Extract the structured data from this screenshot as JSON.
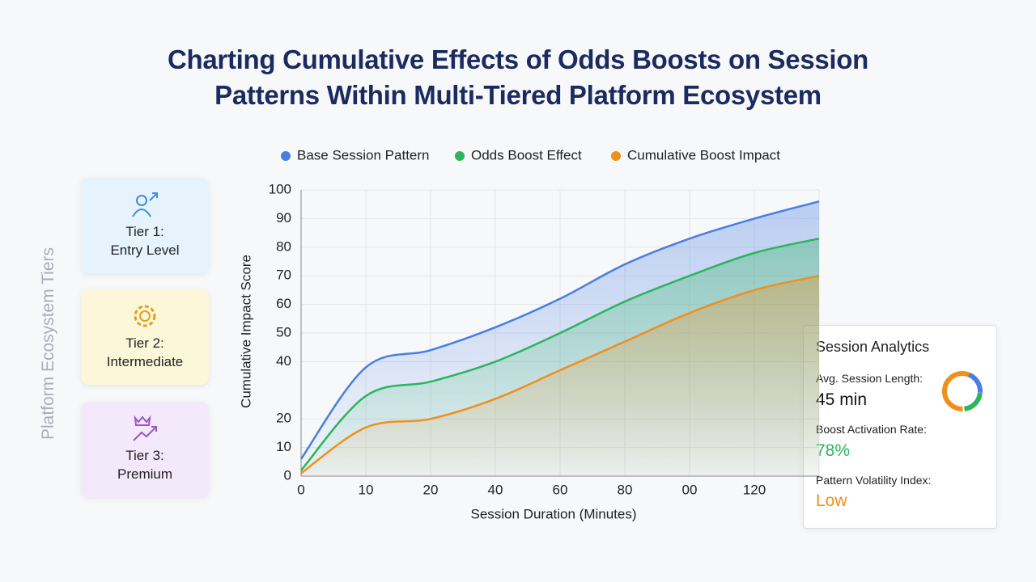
{
  "chart_data": {
    "type": "line",
    "title": "Charting Cumulative Effects of Odds Boosts on Session Patterns Within Multi-Tiered Platform Ecosystem",
    "x_label": "Session Duration (Minutes)",
    "y_label": "Cumulative Impact Score",
    "categories": [
      "0",
      "10",
      "20",
      "40",
      "60",
      "80",
      "00",
      "120",
      null
    ],
    "series": [
      {
        "name": "Base Session Pattern",
        "color": "#4a7ee0",
        "values": [
          6,
          38,
          44,
          52,
          62,
          74,
          83,
          90,
          96
        ]
      },
      {
        "name": "Odds Boost Effect",
        "color": "#2bb55c",
        "values": [
          2,
          28,
          33,
          40,
          50,
          61,
          70,
          78,
          83
        ]
      },
      {
        "name": "Cumulative Boost Impact",
        "color": "#ef8f1c",
        "values": [
          1,
          17,
          20,
          27,
          37,
          47,
          57,
          65,
          70
        ]
      }
    ],
    "ylim": [
      0,
      100
    ],
    "yticks": [
      0,
      10,
      20,
      40,
      50,
      60,
      70,
      80,
      90,
      100
    ],
    "grid": true,
    "area": true,
    "legend": "top"
  },
  "tiers": {
    "title": "Platform Ecosystem Tiers",
    "items": [
      {
        "name": "Tier 1:",
        "level": "Entry Level"
      },
      {
        "name": "Tier 2:",
        "level": "Intermediate"
      },
      {
        "name": "Tier 3:",
        "level": "Premium"
      }
    ]
  },
  "analytics": {
    "title": "Session Analytics",
    "metrics": [
      {
        "label": "Avg. Session Length:",
        "value": "45 min"
      },
      {
        "label": "Boost Activation Rate:",
        "value": "78%"
      },
      {
        "label": "Pattern Volatility Index:",
        "value": "Low"
      }
    ]
  }
}
